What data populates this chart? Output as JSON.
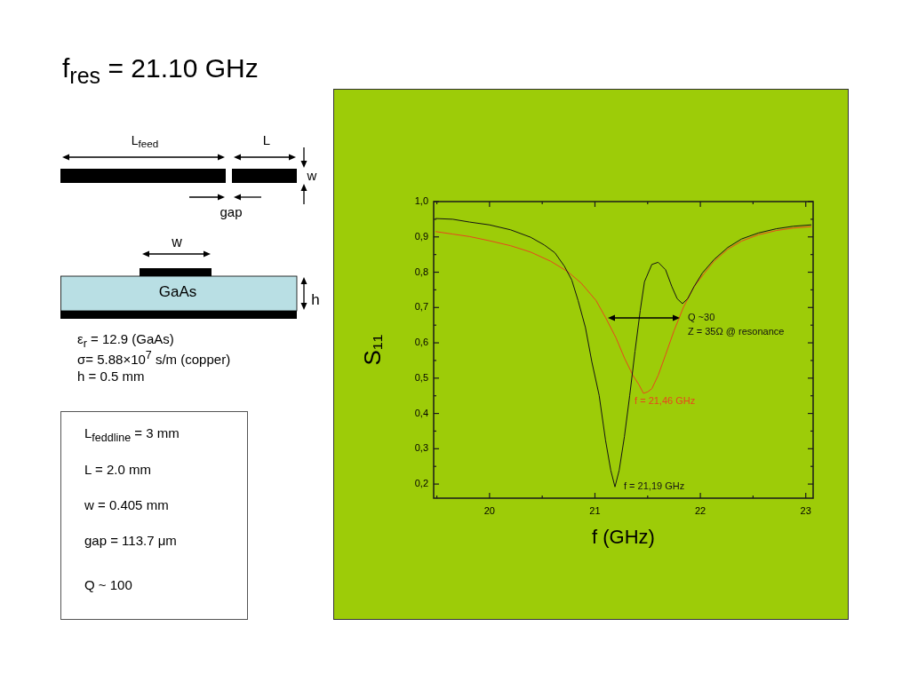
{
  "chart_data": {
    "type": "line",
    "title": "f$_{res}$ = 21.10 GHz",
    "xlabel": "f (GHz)",
    "ylabel": "S₁₁",
    "xlim": [
      19.47,
      23.07
    ],
    "ylim": [
      0.16,
      1.0
    ],
    "xticks": [
      {
        "value": 19.5,
        "label": null
      },
      20,
      {
        "value": 20.5,
        "label": null
      },
      21,
      {
        "value": 21.5,
        "label": null
      },
      22,
      {
        "value": 22.5,
        "label": null
      },
      23
    ],
    "yticks": [
      {
        "value": 0.2,
        "label": "0,2"
      },
      {
        "value": 0.25,
        "label": null
      },
      {
        "value": 0.3,
        "label": "0,3"
      },
      {
        "value": 0.35,
        "label": null
      },
      {
        "value": 0.4,
        "label": "0,4"
      },
      {
        "value": 0.45,
        "label": null
      },
      {
        "value": 0.5,
        "label": "0,5"
      },
      {
        "value": 0.55,
        "label": null
      },
      {
        "value": 0.6,
        "label": "0,6"
      },
      {
        "value": 0.65,
        "label": null
      },
      {
        "value": 0.7,
        "label": "0,7"
      },
      {
        "value": 0.75,
        "label": null
      },
      {
        "value": 0.8,
        "label": "0,8"
      },
      {
        "value": 0.85,
        "label": null
      },
      {
        "value": 0.9,
        "label": "0,9"
      },
      {
        "value": 0.95,
        "label": null
      },
      {
        "value": 1.0,
        "label": "1,0"
      }
    ],
    "series": [
      {
        "color": "#141414",
        "x": [
          19.49,
          19.65,
          19.81,
          20.0,
          20.2,
          20.39,
          20.52,
          20.62,
          20.71,
          20.78,
          20.84,
          20.91,
          20.97,
          21.04,
          21.1,
          21.15,
          21.19,
          21.23,
          21.28,
          21.33,
          21.38,
          21.43,
          21.47,
          21.54,
          21.6,
          21.67,
          21.73,
          21.78,
          21.83,
          21.88,
          21.94,
          22.02,
          22.13,
          22.26,
          22.39,
          22.55,
          22.72,
          22.88,
          23.05
        ],
        "values": [
          0.952,
          0.95,
          0.942,
          0.934,
          0.92,
          0.899,
          0.877,
          0.855,
          0.817,
          0.778,
          0.72,
          0.643,
          0.547,
          0.451,
          0.325,
          0.239,
          0.192,
          0.239,
          0.335,
          0.451,
          0.576,
          0.692,
          0.773,
          0.822,
          0.828,
          0.807,
          0.759,
          0.725,
          0.711,
          0.725,
          0.759,
          0.798,
          0.836,
          0.87,
          0.894,
          0.911,
          0.923,
          0.93,
          0.934
        ]
      },
      {
        "color": "#e8461e",
        "x": [
          19.49,
          19.65,
          19.81,
          20.0,
          20.2,
          20.39,
          20.58,
          20.74,
          20.87,
          21.01,
          21.1,
          21.2,
          21.28,
          21.36,
          21.42,
          21.46,
          21.5,
          21.54,
          21.6,
          21.67,
          21.75,
          21.84,
          21.94,
          22.04,
          22.13,
          22.26,
          22.39,
          22.55,
          22.72,
          22.88,
          23.05
        ],
        "values": [
          0.915,
          0.908,
          0.901,
          0.889,
          0.875,
          0.857,
          0.831,
          0.802,
          0.769,
          0.72,
          0.672,
          0.614,
          0.557,
          0.508,
          0.48,
          0.457,
          0.461,
          0.47,
          0.508,
          0.566,
          0.634,
          0.701,
          0.759,
          0.798,
          0.831,
          0.865,
          0.888,
          0.906,
          0.918,
          0.925,
          0.929
        ]
      }
    ],
    "annotations": [
      {
        "text": "f = 21,19 GHz",
        "x": 21.19,
        "y": 0.192
      },
      {
        "text": "f = 21,46 GHz",
        "x": 21.46,
        "y": 0.457
      },
      "Q ~30",
      "Z = 35Ω @ resonance",
      "L$_{feed}$",
      "L",
      "w",
      "gap",
      "w",
      "GaAs",
      "h",
      "ε$_{r}$ = 12.9 (GaAs)",
      "σ= 5.88×10$^{7}$ s/m (copper)",
      "h = 0.5 mm",
      "L$_{feddline}$ = 3 mm",
      "L = 2.0 mm",
      "w = 0.405 mm",
      "gap = 113.7 μm",
      "Q ~ 100"
    ]
  }
}
